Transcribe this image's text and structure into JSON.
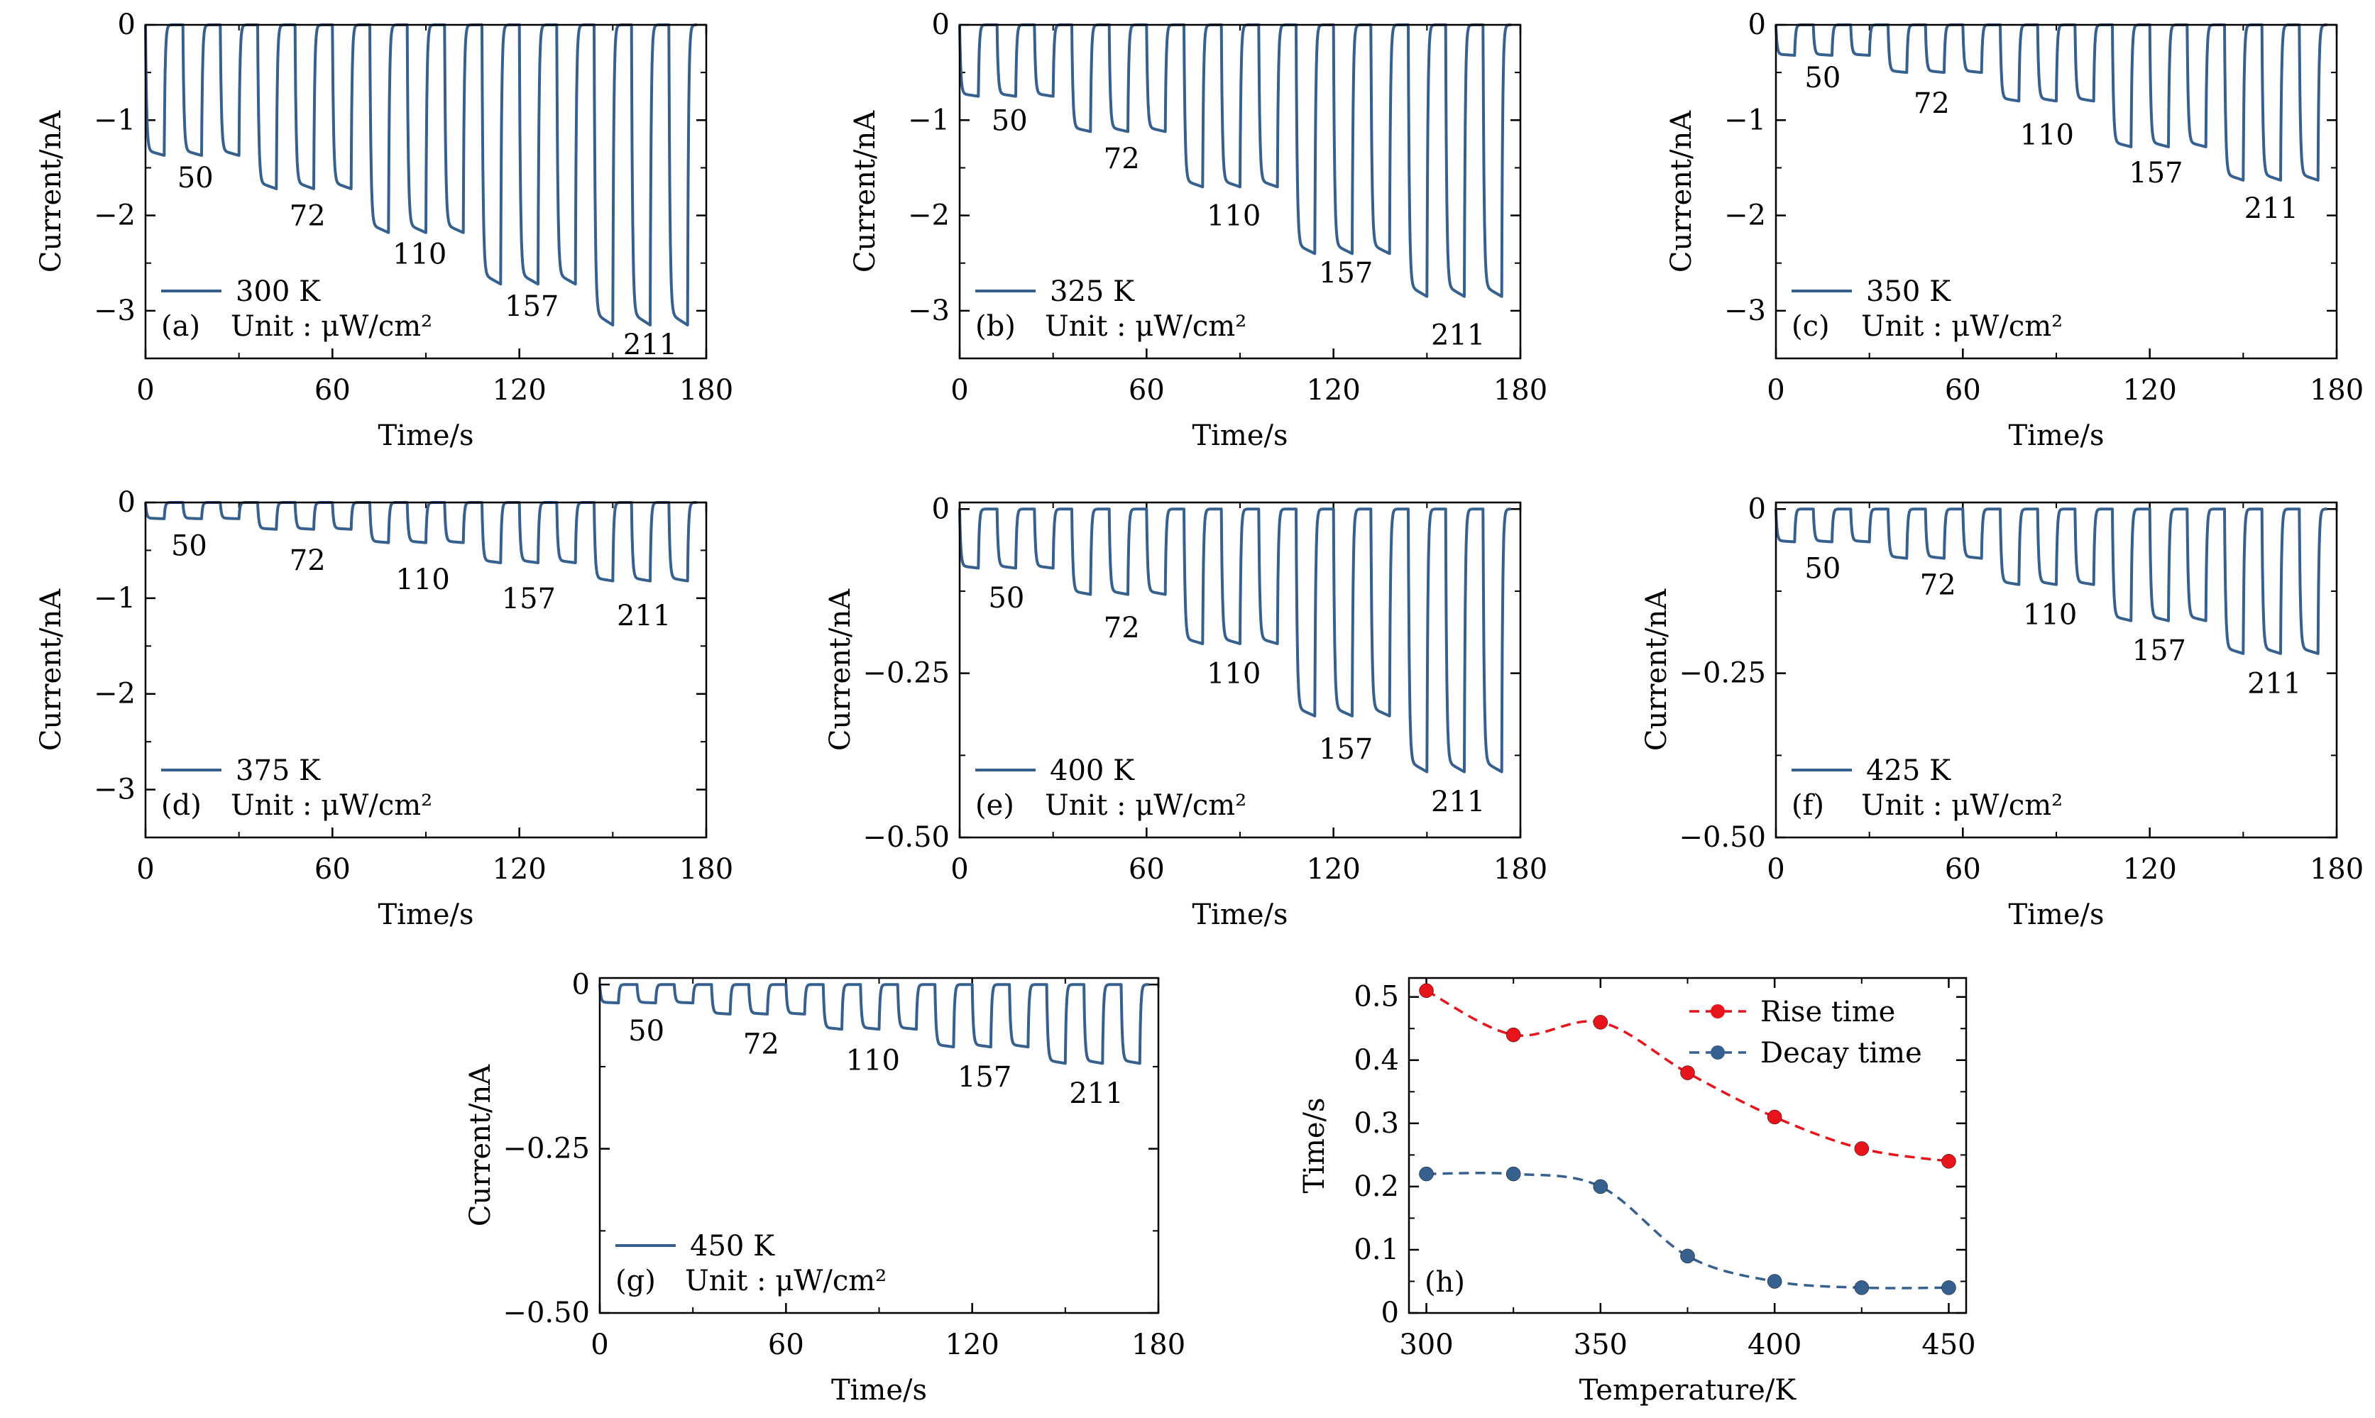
{
  "colors": {
    "signal": "#36618f",
    "rise": "#e8141b",
    "decay": "#36618f",
    "axis": "#000000"
  },
  "chart_data": [
    {
      "type": "line",
      "label": "(a)",
      "legend": "300 K",
      "unit_note": "Unit : μW/cm²",
      "xlabel": "Time/s",
      "ylabel": "Current/nA",
      "xlim": [
        0,
        180
      ],
      "ylim": [
        -3.5,
        0
      ],
      "xticks": [
        0,
        60,
        120,
        180
      ],
      "yticks": [
        -3,
        -2,
        -1,
        0
      ],
      "ytick_labels": [
        "−3",
        "−2",
        "−1",
        "0"
      ],
      "intensities": [
        {
          "label": "50",
          "on_level": -1.37,
          "label_pos": [
            16,
            -1.6
          ]
        },
        {
          "label": "72",
          "on_level": -1.72,
          "label_pos": [
            52,
            -2.0
          ]
        },
        {
          "label": "110",
          "on_level": -2.18,
          "label_pos": [
            88,
            -2.4
          ]
        },
        {
          "label": "157",
          "on_level": -2.72,
          "label_pos": [
            124,
            -2.95
          ]
        },
        {
          "label": "211",
          "on_level": -3.15,
          "label_pos": [
            162,
            -3.35
          ]
        }
      ]
    },
    {
      "type": "line",
      "label": "(b)",
      "legend": "325 K",
      "unit_note": "Unit : μW/cm²",
      "xlabel": "Time/s",
      "ylabel": "Current/nA",
      "xlim": [
        0,
        180
      ],
      "ylim": [
        -3.5,
        0
      ],
      "xticks": [
        0,
        60,
        120,
        180
      ],
      "yticks": [
        -3,
        -2,
        -1,
        0
      ],
      "ytick_labels": [
        "−3",
        "−2",
        "−1",
        "0"
      ],
      "intensities": [
        {
          "label": "50",
          "on_level": -0.75,
          "label_pos": [
            16,
            -1.0
          ]
        },
        {
          "label": "72",
          "on_level": -1.12,
          "label_pos": [
            52,
            -1.4
          ]
        },
        {
          "label": "110",
          "on_level": -1.7,
          "label_pos": [
            88,
            -2.0
          ]
        },
        {
          "label": "157",
          "on_level": -2.4,
          "label_pos": [
            124,
            -2.6
          ]
        },
        {
          "label": "211",
          "on_level": -2.85,
          "label_pos": [
            160,
            -3.25
          ]
        }
      ]
    },
    {
      "type": "line",
      "label": "(c)",
      "legend": "350 K",
      "unit_note": "Unit : μW/cm²",
      "xlabel": "Time/s",
      "ylabel": "Current/nA",
      "xlim": [
        0,
        180
      ],
      "ylim": [
        -3.5,
        0
      ],
      "xticks": [
        0,
        60,
        120,
        180
      ],
      "yticks": [
        -3,
        -2,
        -1,
        0
      ],
      "ytick_labels": [
        "−3",
        "−2",
        "−1",
        "0"
      ],
      "intensities": [
        {
          "label": "50",
          "on_level": -0.32,
          "label_pos": [
            15,
            -0.55
          ]
        },
        {
          "label": "72",
          "on_level": -0.5,
          "label_pos": [
            50,
            -0.82
          ]
        },
        {
          "label": "110",
          "on_level": -0.8,
          "label_pos": [
            87,
            -1.15
          ]
        },
        {
          "label": "157",
          "on_level": -1.28,
          "label_pos": [
            122,
            -1.55
          ]
        },
        {
          "label": "211",
          "on_level": -1.63,
          "label_pos": [
            159,
            -1.92
          ]
        }
      ]
    },
    {
      "type": "line",
      "label": "(d)",
      "legend": "375 K",
      "unit_note": "Unit : μW/cm²",
      "xlabel": "Time/s",
      "ylabel": "Current/nA",
      "xlim": [
        0,
        180
      ],
      "ylim": [
        -3.5,
        0
      ],
      "xticks": [
        0,
        60,
        120,
        180
      ],
      "yticks": [
        -3,
        -2,
        -1,
        0
      ],
      "ytick_labels": [
        "−3",
        "−2",
        "−1",
        "0"
      ],
      "intensities": [
        {
          "label": "50",
          "on_level": -0.17,
          "label_pos": [
            14,
            -0.45
          ]
        },
        {
          "label": "72",
          "on_level": -0.28,
          "label_pos": [
            52,
            -0.6
          ]
        },
        {
          "label": "110",
          "on_level": -0.42,
          "label_pos": [
            89,
            -0.8
          ]
        },
        {
          "label": "157",
          "on_level": -0.63,
          "label_pos": [
            123,
            -1.0
          ]
        },
        {
          "label": "211",
          "on_level": -0.82,
          "label_pos": [
            160,
            -1.18
          ]
        }
      ]
    },
    {
      "type": "line",
      "label": "(e)",
      "legend": "400 K",
      "unit_note": "Unit : μW/cm²",
      "xlabel": "Time/s",
      "ylabel": "Current/nA",
      "xlim": [
        0,
        180
      ],
      "ylim": [
        -0.5,
        0.01
      ],
      "xticks": [
        0,
        60,
        120,
        180
      ],
      "yticks": [
        -0.5,
        -0.25,
        0
      ],
      "ytick_labels": [
        "−0.50",
        "−0.25",
        "0"
      ],
      "intensities": [
        {
          "label": "50",
          "on_level": -0.09,
          "label_pos": [
            15,
            -0.135
          ]
        },
        {
          "label": "72",
          "on_level": -0.13,
          "label_pos": [
            52,
            -0.18
          ]
        },
        {
          "label": "110",
          "on_level": -0.205,
          "label_pos": [
            88,
            -0.25
          ]
        },
        {
          "label": "157",
          "on_level": -0.315,
          "label_pos": [
            124,
            -0.365
          ]
        },
        {
          "label": "211",
          "on_level": -0.4,
          "label_pos": [
            160,
            -0.445
          ]
        }
      ]
    },
    {
      "type": "line",
      "label": "(f)",
      "legend": "425 K",
      "unit_note": "Unit : μW/cm²",
      "xlabel": "Time/s",
      "ylabel": "Current/nA",
      "xlim": [
        0,
        180
      ],
      "ylim": [
        -0.5,
        0.01
      ],
      "xticks": [
        0,
        60,
        120,
        180
      ],
      "yticks": [
        -0.5,
        -0.25,
        0
      ],
      "ytick_labels": [
        "−0.50",
        "−0.25",
        "0"
      ],
      "intensities": [
        {
          "label": "50",
          "on_level": -0.05,
          "label_pos": [
            15,
            -0.09
          ]
        },
        {
          "label": "72",
          "on_level": -0.075,
          "label_pos": [
            52,
            -0.115
          ]
        },
        {
          "label": "110",
          "on_level": -0.115,
          "label_pos": [
            88,
            -0.16
          ]
        },
        {
          "label": "157",
          "on_level": -0.17,
          "label_pos": [
            123,
            -0.215
          ]
        },
        {
          "label": "211",
          "on_level": -0.22,
          "label_pos": [
            160,
            -0.265
          ]
        }
      ]
    },
    {
      "type": "line",
      "label": "(g)",
      "legend": "450 K",
      "unit_note": "Unit : μW/cm²",
      "xlabel": "Time/s",
      "ylabel": "Current/nA",
      "xlim": [
        0,
        180
      ],
      "ylim": [
        -0.5,
        0.01
      ],
      "xticks": [
        0,
        60,
        120,
        180
      ],
      "yticks": [
        -0.5,
        -0.25,
        0
      ],
      "ytick_labels": [
        "−0.50",
        "−0.25",
        "0"
      ],
      "intensities": [
        {
          "label": "50",
          "on_level": -0.028,
          "label_pos": [
            15,
            -0.07
          ]
        },
        {
          "label": "72",
          "on_level": -0.045,
          "label_pos": [
            52,
            -0.09
          ]
        },
        {
          "label": "110",
          "on_level": -0.068,
          "label_pos": [
            88,
            -0.115
          ]
        },
        {
          "label": "157",
          "on_level": -0.095,
          "label_pos": [
            124,
            -0.14
          ]
        },
        {
          "label": "211",
          "on_level": -0.12,
          "label_pos": [
            160,
            -0.165
          ]
        }
      ]
    },
    {
      "type": "scatter",
      "label": "(h)",
      "xlabel": "Temperature/K",
      "ylabel": "Time/s",
      "xlim": [
        295,
        455
      ],
      "ylim": [
        0,
        0.53
      ],
      "xticks": [
        300,
        350,
        400,
        450
      ],
      "yticks": [
        0,
        0.1,
        0.2,
        0.3,
        0.4,
        0.5
      ],
      "ytick_labels": [
        "0",
        "0.1",
        "0.2",
        "0.3",
        "0.4",
        "0.5"
      ],
      "x": [
        300,
        325,
        350,
        375,
        400,
        425,
        450
      ],
      "series": [
        {
          "name": "Rise time",
          "values": [
            0.51,
            0.44,
            0.46,
            0.38,
            0.31,
            0.26,
            0.24
          ]
        },
        {
          "name": "Decay time",
          "values": [
            0.22,
            0.22,
            0.2,
            0.09,
            0.05,
            0.04,
            0.04
          ]
        }
      ],
      "legend_position": "top-right"
    }
  ]
}
